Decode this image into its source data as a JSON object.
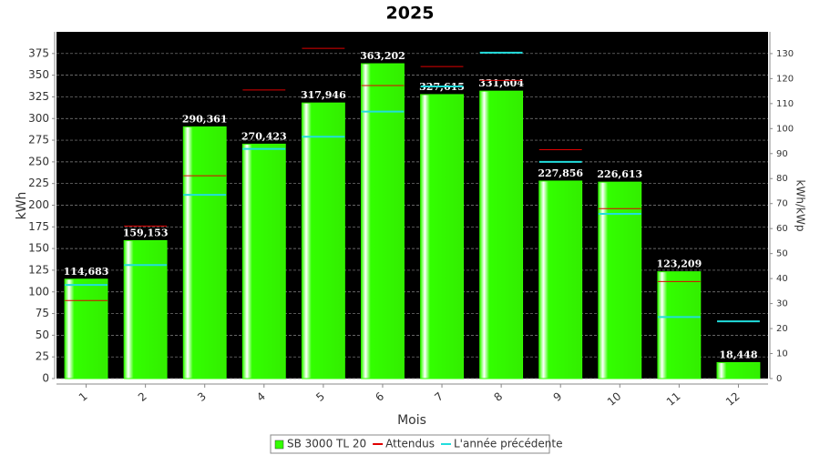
{
  "chart_data": {
    "type": "bar",
    "title": "2025",
    "x_label": "Mois",
    "y_label": "kWh",
    "y2_label": "kWh/kWp",
    "categories": [
      "1",
      "2",
      "3",
      "4",
      "5",
      "6",
      "7",
      "8",
      "9",
      "10",
      "11",
      "12"
    ],
    "ylim": [
      0,
      400
    ],
    "yticks": [
      0,
      25,
      50,
      75,
      100,
      125,
      150,
      175,
      200,
      225,
      250,
      275,
      300,
      325,
      350,
      375
    ],
    "y2lim": [
      0,
      138.7
    ],
    "y2ticks": [
      0,
      10,
      20,
      30,
      40,
      50,
      60,
      70,
      80,
      90,
      100,
      110,
      120,
      130
    ],
    "grid": true,
    "series": [
      {
        "name": "SB 3000 TL 20",
        "style": "bar",
        "color": "#33ff00",
        "values": [
          114.683,
          159.153,
          290.361,
          270.423,
          317.946,
          363.202,
          327.615,
          331.604,
          227.856,
          226.613,
          123.209,
          18.448
        ],
        "value_labels": [
          "114,683",
          "159,153",
          "290,361",
          "270,423",
          "317,946",
          "363,202",
          "327,615",
          "331,604",
          "227,856",
          "226,613",
          "123,209",
          "18,448"
        ]
      },
      {
        "name": "Attendus",
        "style": "dash",
        "color": "#e00000",
        "values": [
          90,
          176,
          234,
          333,
          381,
          338,
          360,
          344,
          264,
          196,
          112,
          null
        ]
      },
      {
        "name": "L'année précédente",
        "style": "dash",
        "color": "#22dddd",
        "values": [
          108,
          131,
          212,
          265,
          279,
          308,
          337,
          376,
          250,
          190,
          71,
          66
        ]
      }
    ]
  }
}
